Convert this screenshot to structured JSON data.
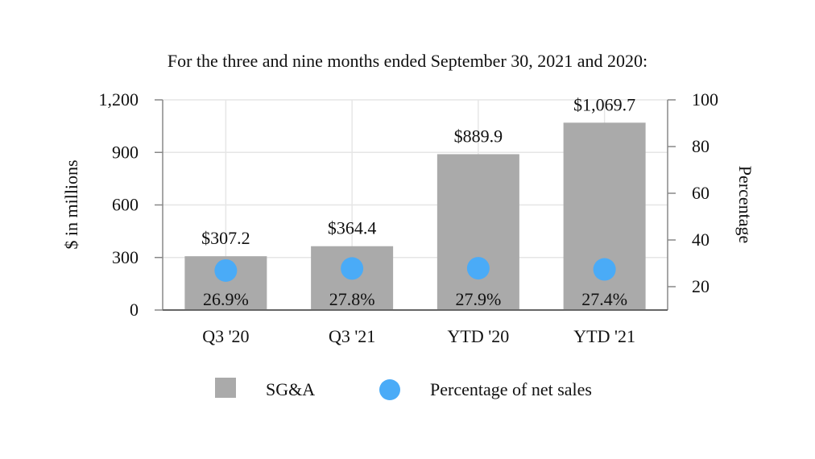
{
  "chart_data": {
    "type": "bar",
    "title": "For the three and nine months ended September 30, 2021 and 2020:",
    "categories": [
      "Q3 '20",
      "Q3 '21",
      "YTD '20",
      "YTD '21"
    ],
    "series": [
      {
        "name": "SG&A",
        "axis": "left",
        "values": [
          307.2,
          364.4,
          889.9,
          1069.7
        ],
        "labels": [
          "$307.2",
          "$364.4",
          "$889.9",
          "$1,069.7"
        ],
        "color": "#aaaaaa"
      },
      {
        "name": "Percentage of net sales",
        "type": "scatter",
        "axis": "right",
        "values": [
          26.9,
          27.8,
          27.9,
          27.4
        ],
        "labels": [
          "26.9%",
          "27.8%",
          "27.9%",
          "27.4%"
        ],
        "color": "#4aabf7"
      }
    ],
    "ylabel": "$ in millions",
    "ylim": [
      0,
      1200
    ],
    "yticks": [
      0,
      300,
      600,
      900,
      1200
    ],
    "ytick_labels": [
      "0",
      "300",
      "600",
      "900",
      "1,200"
    ],
    "y2label": "Percentage",
    "y2lim": [
      10,
      100
    ],
    "y2ticks": [
      20,
      40,
      60,
      80,
      100
    ],
    "y2tick_labels": [
      "20",
      "40",
      "60",
      "80",
      "100"
    ],
    "grid": true,
    "legend_position": "bottom"
  }
}
